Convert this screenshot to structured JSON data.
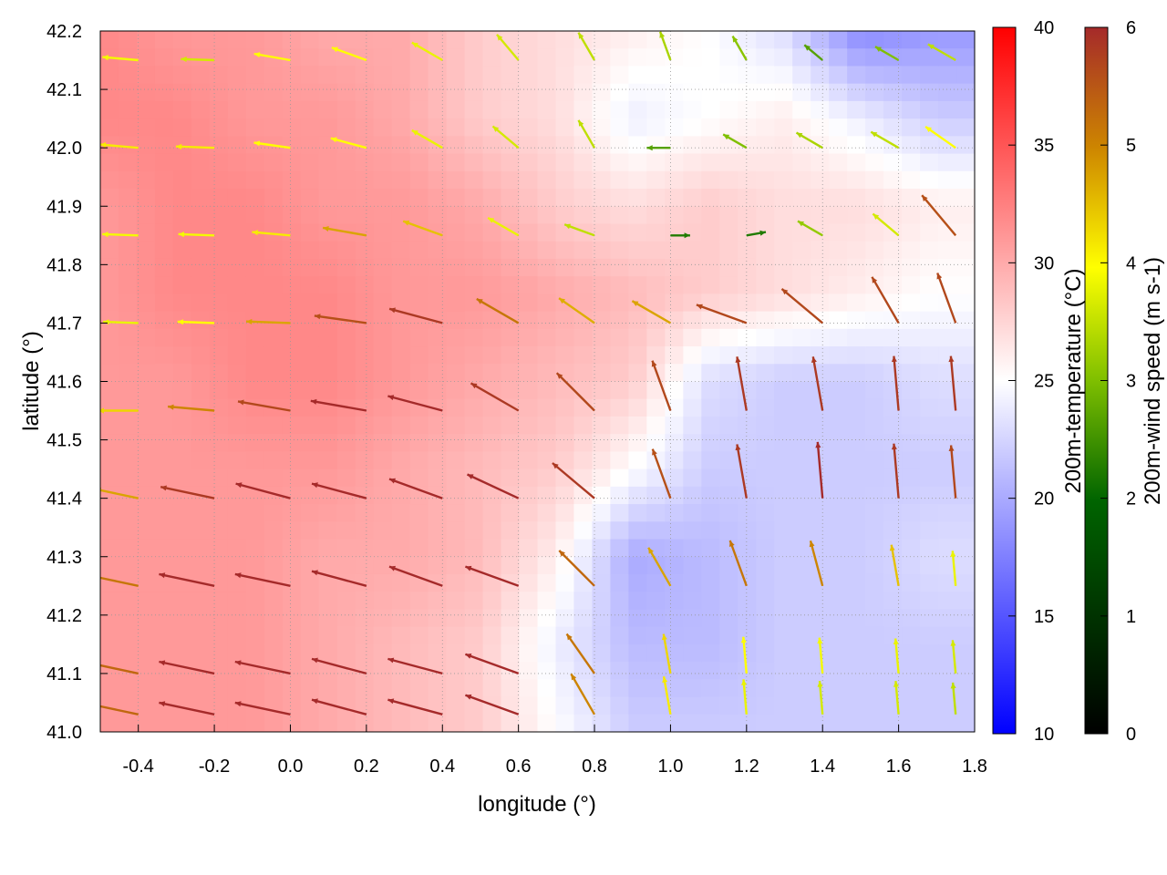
{
  "chart_data": {
    "type": "heatmap",
    "title": "",
    "xlabel": "longitude (°)",
    "ylabel": "latitude (°)",
    "xlim": [
      -0.5,
      1.8
    ],
    "ylim": [
      41.0,
      42.2
    ],
    "x_ticks": [
      "-0.4",
      "-0.2",
      "0.0",
      "0.2",
      "0.4",
      "0.6",
      "0.8",
      "1.0",
      "1.2",
      "1.4",
      "1.6",
      "1.8"
    ],
    "y_ticks": [
      "41.0",
      "41.1",
      "41.2",
      "41.3",
      "41.4",
      "41.5",
      "41.6",
      "41.7",
      "41.8",
      "41.9",
      "42.0",
      "42.1",
      "42.2"
    ],
    "grid": true,
    "temperature_field": {
      "label": "200m-temperature (°C)",
      "range": [
        10,
        40
      ],
      "ticks": [
        "10",
        "15",
        "20",
        "25",
        "30",
        "35",
        "40"
      ],
      "colormap": [
        "#0000ff",
        "#ffffff",
        "#ff0000"
      ],
      "lon": [
        -0.5,
        -0.3,
        -0.1,
        0.1,
        0.3,
        0.5,
        0.7,
        0.9,
        1.1,
        1.3,
        1.5,
        1.7
      ],
      "lat": [
        42.2,
        42.05,
        41.9,
        41.75,
        41.6,
        41.45,
        41.3,
        41.15,
        41.0
      ],
      "values": [
        [
          32,
          31,
          31,
          30,
          30,
          28,
          27,
          26,
          25,
          23,
          18,
          19
        ],
        [
          32,
          32,
          31,
          31,
          30,
          28,
          27,
          24,
          25,
          26,
          24,
          22
        ],
        [
          31,
          32,
          32,
          31,
          31,
          30,
          28,
          27,
          28,
          27,
          27,
          26
        ],
        [
          31,
          32,
          32,
          32,
          31,
          31,
          30,
          29,
          28,
          27,
          26,
          25
        ],
        [
          31,
          31,
          32,
          32,
          31,
          30,
          29,
          28,
          23,
          22,
          22,
          23
        ],
        [
          31,
          31,
          31,
          31,
          30,
          29,
          28,
          25,
          22,
          22,
          22,
          22
        ],
        [
          31,
          31,
          31,
          30,
          30,
          29,
          26,
          20,
          21,
          22,
          22,
          23
        ],
        [
          31,
          31,
          31,
          30,
          29,
          28,
          24,
          21,
          21,
          22,
          22,
          22
        ],
        [
          31,
          31,
          31,
          30,
          29,
          28,
          25,
          22,
          22,
          22,
          22,
          22
        ]
      ]
    },
    "wind_field": {
      "label": "200m-wind speed (m s-1)",
      "range": [
        0,
        6
      ],
      "ticks": [
        "0",
        "1",
        "2",
        "3",
        "4",
        "5",
        "6"
      ],
      "colormap": [
        "#000000",
        "#006400",
        "#7fbf00",
        "#ffff00",
        "#cd8500",
        "#a52a2a"
      ],
      "lon": [
        -0.4,
        -0.2,
        0.0,
        0.2,
        0.4,
        0.6,
        0.8,
        1.0,
        1.2,
        1.4,
        1.6,
        1.75
      ],
      "lat": [
        42.15,
        42.0,
        41.85,
        41.7,
        41.55,
        41.4,
        41.25,
        41.1,
        41.03
      ],
      "direction_deg": [
        [
          175,
          178,
          170,
          160,
          150,
          130,
          120,
          110,
          120,
          140,
          150,
          150
        ],
        [
          175,
          178,
          172,
          165,
          150,
          140,
          120,
          180,
          150,
          150,
          150,
          145
        ],
        [
          178,
          178,
          175,
          170,
          160,
          150,
          160,
          0,
          10,
          150,
          140,
          130
        ],
        [
          178,
          178,
          178,
          172,
          165,
          150,
          145,
          150,
          160,
          140,
          120,
          110
        ],
        [
          180,
          175,
          170,
          170,
          165,
          150,
          135,
          110,
          100,
          100,
          95,
          95
        ],
        [
          168,
          168,
          165,
          165,
          160,
          155,
          140,
          110,
          100,
          95,
          95,
          95
        ],
        [
          168,
          168,
          168,
          165,
          160,
          160,
          135,
          120,
          110,
          105,
          100,
          95
        ],
        [
          168,
          168,
          168,
          165,
          165,
          160,
          125,
          100,
          95,
          95,
          95,
          95
        ],
        [
          168,
          168,
          168,
          165,
          165,
          160,
          120,
          100,
          95,
          95,
          95,
          95
        ]
      ],
      "speed": [
        [
          3.5,
          3.2,
          3.6,
          3.6,
          3.4,
          3.2,
          3.0,
          2.8,
          2.5,
          2.0,
          2.4,
          3.0
        ],
        [
          3.8,
          3.8,
          3.6,
          3.6,
          3.4,
          3.2,
          3.0,
          2.0,
          2.4,
          2.8,
          3.0,
          3.6
        ],
        [
          3.5,
          3.5,
          3.8,
          4.5,
          4.2,
          3.4,
          3.0,
          1.5,
          1.5,
          2.6,
          3.2,
          5.5
        ],
        [
          3.4,
          3.6,
          4.5,
          5.5,
          5.8,
          5.0,
          4.4,
          4.5,
          5.6,
          5.6,
          5.6,
          5.6
        ],
        [
          4.0,
          4.8,
          5.6,
          6.0,
          6.0,
          5.8,
          5.6,
          5.6,
          5.8,
          5.8,
          5.8,
          5.8
        ],
        [
          4.5,
          5.8,
          6.0,
          6.0,
          6.0,
          6.0,
          5.8,
          5.5,
          5.8,
          6.0,
          5.8,
          5.6
        ],
        [
          5.0,
          6.0,
          6.0,
          6.0,
          6.0,
          6.0,
          5.2,
          4.5,
          5.0,
          4.8,
          4.2,
          3.4
        ],
        [
          5.2,
          6.0,
          6.0,
          6.0,
          6.0,
          6.0,
          5.0,
          4.0,
          3.6,
          3.5,
          3.4,
          3.2
        ],
        [
          5.2,
          6.0,
          6.0,
          6.0,
          6.0,
          6.0,
          4.8,
          3.8,
          3.4,
          3.2,
          3.2,
          3.0
        ]
      ]
    }
  }
}
